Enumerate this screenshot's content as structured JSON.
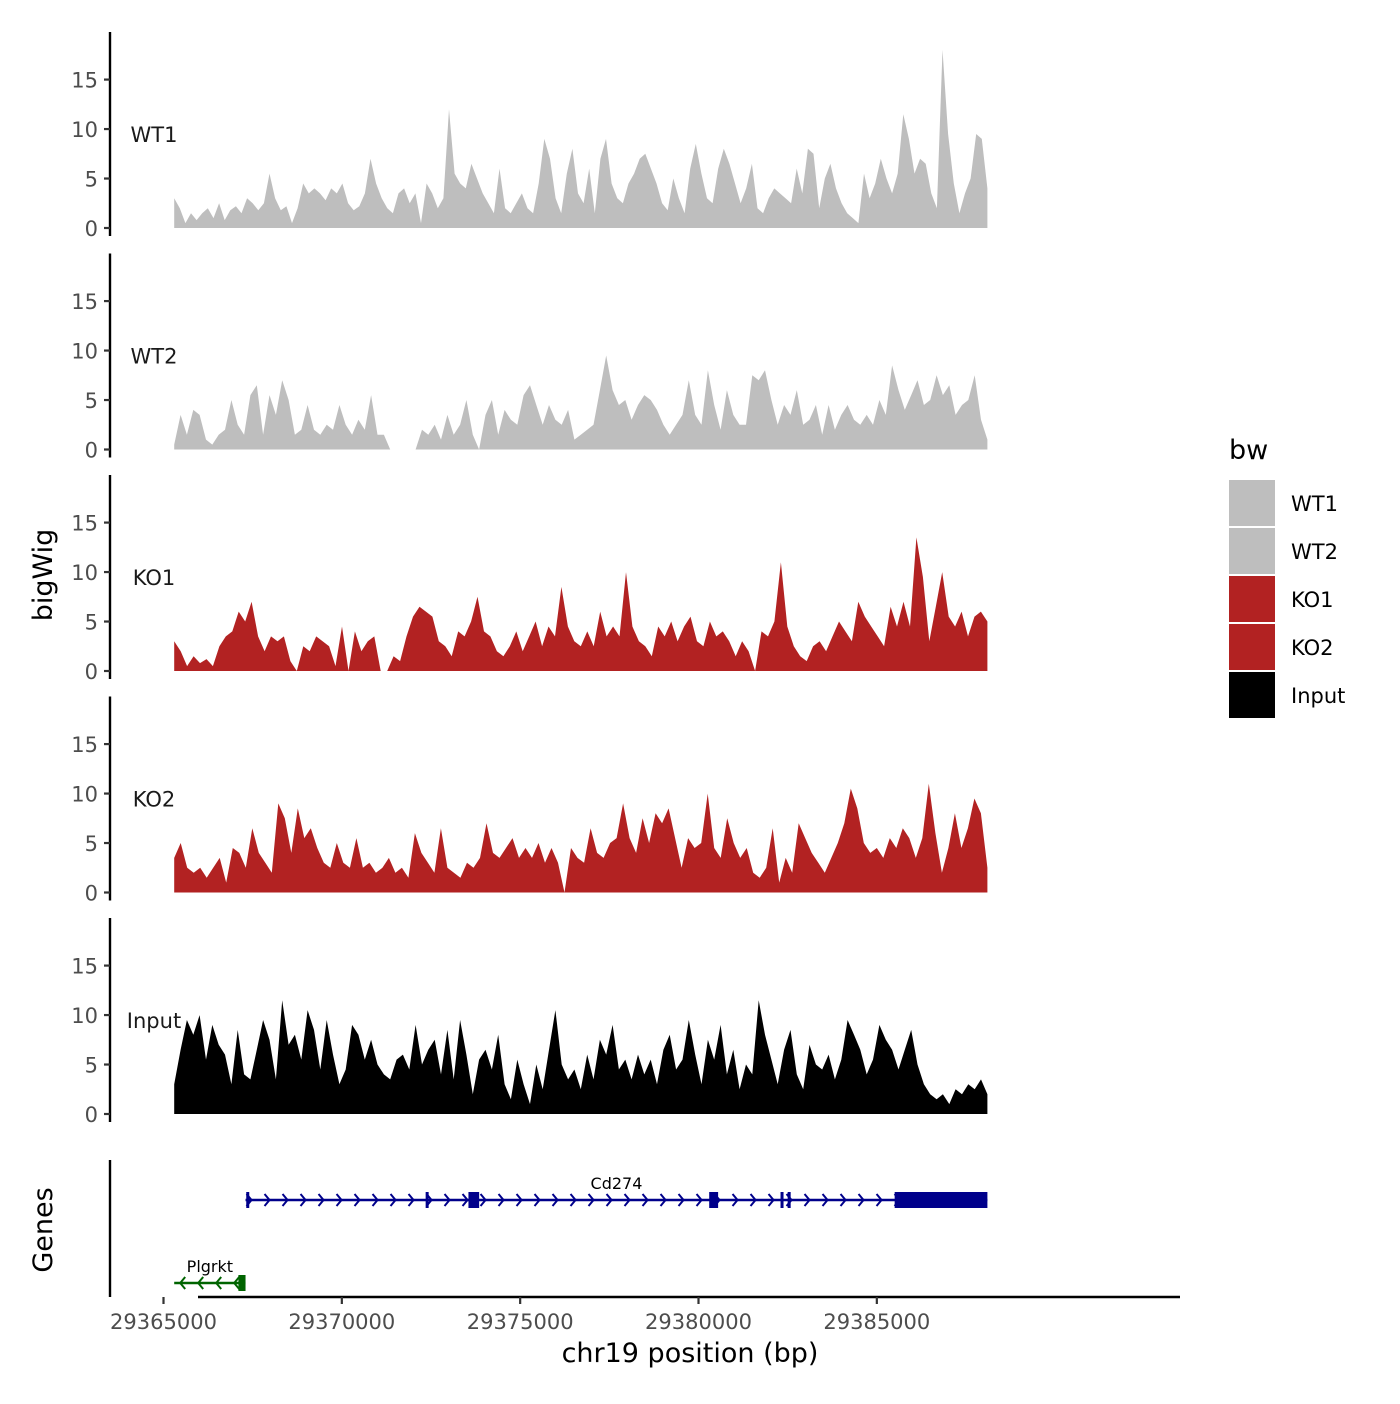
{
  "chart_data": {
    "type": "area",
    "title": "",
    "xlabel": "chr19 position (bp)",
    "ylabel": "bigWig",
    "genes_label": "Genes",
    "x_range": [
      29363500,
      29393500
    ],
    "region": [
      29365300,
      29388100
    ],
    "ylim": [
      0,
      19
    ],
    "y_ticks": [
      0,
      5,
      10,
      15
    ],
    "x_ticks": [
      29365000,
      29370000,
      29375000,
      29380000,
      29385000
    ],
    "x_tick_labels": [
      "29365000",
      "29370000",
      "29375000",
      "29380000",
      "29385000"
    ],
    "legend": {
      "title": "bw",
      "position": "right",
      "entries": [
        {
          "label": "WT1",
          "color": "#BEBEBE"
        },
        {
          "label": "WT2",
          "color": "#BEBEBE"
        },
        {
          "label": "KO1",
          "color": "#B22222"
        },
        {
          "label": "KO2",
          "color": "#B22222"
        },
        {
          "label": "Input",
          "color": "#000000"
        }
      ]
    },
    "series": [
      {
        "name": "WT1",
        "color": "#BEBEBE",
        "values": [
          3.0,
          2.0,
          0.5,
          1.5,
          0.8,
          1.5,
          2.0,
          1.0,
          2.5,
          0.8,
          1.8,
          2.2,
          1.5,
          3.0,
          2.5,
          1.8,
          2.5,
          5.5,
          3.0,
          1.8,
          2.2,
          0.5,
          2.0,
          4.5,
          3.5,
          4.0,
          3.5,
          2.8,
          4.0,
          3.5,
          4.5,
          2.5,
          1.8,
          2.2,
          3.5,
          7.0,
          4.5,
          3.0,
          2.0,
          1.5,
          3.5,
          4.0,
          2.5,
          3.5,
          0.5,
          4.5,
          3.5,
          2.0,
          3.0,
          12.0,
          5.5,
          4.5,
          4.0,
          6.5,
          5.0,
          3.5,
          2.5,
          1.5,
          6.0,
          2.0,
          1.5,
          2.5,
          3.5,
          2.0,
          1.5,
          4.5,
          9.0,
          7.0,
          3.0,
          1.5,
          5.5,
          8.0,
          3.5,
          2.5,
          6.0,
          1.5,
          7.0,
          9.0,
          4.5,
          3.0,
          2.5,
          4.5,
          5.5,
          7.0,
          7.5,
          6.0,
          4.5,
          2.5,
          1.8,
          5.0,
          3.0,
          1.5,
          6.0,
          8.5,
          5.5,
          3.0,
          2.5,
          6.0,
          8.0,
          6.5,
          4.5,
          2.5,
          4.0,
          6.5,
          2.0,
          1.5,
          3.0,
          4.0,
          3.5,
          3.0,
          2.5,
          6.0,
          3.5,
          8.0,
          7.5,
          2.0,
          5.0,
          6.5,
          4.0,
          2.5,
          1.5,
          1.0,
          0.5,
          5.5,
          3.0,
          4.5,
          7.0,
          5.0,
          3.5,
          5.5,
          11.5,
          9.0,
          5.5,
          7.0,
          6.5,
          3.5,
          2.0,
          18.0,
          9.5,
          4.5,
          1.5,
          3.5,
          5.0,
          9.5,
          9.0,
          4.0
        ]
      },
      {
        "name": "WT2",
        "color": "#BEBEBE",
        "values": [
          0.5,
          3.5,
          1.5,
          4.0,
          3.5,
          1.0,
          0.5,
          1.5,
          2.0,
          5.0,
          2.5,
          1.5,
          5.5,
          6.5,
          1.5,
          5.5,
          3.5,
          7.0,
          5.0,
          1.5,
          2.0,
          4.5,
          2.0,
          1.5,
          2.5,
          2.0,
          4.5,
          2.5,
          1.5,
          3.0,
          2.0,
          5.5,
          1.5,
          1.5,
          0,
          0,
          0,
          0,
          0,
          2.0,
          1.5,
          2.5,
          1.0,
          3.5,
          1.5,
          2.5,
          5.0,
          1.5,
          0,
          3.5,
          5.0,
          1.5,
          4.0,
          3.0,
          2.5,
          5.5,
          6.5,
          4.5,
          2.5,
          4.5,
          3.0,
          2.5,
          4.0,
          1.0,
          1.5,
          2.0,
          2.5,
          6.0,
          9.5,
          6.0,
          4.5,
          5.0,
          3.0,
          4.5,
          5.5,
          5.0,
          4.0,
          2.5,
          1.5,
          2.5,
          3.5,
          7.0,
          3.5,
          2.5,
          8.0,
          4.5,
          2.0,
          6.0,
          3.5,
          2.5,
          2.5,
          7.5,
          7.0,
          8.0,
          5.0,
          2.5,
          4.5,
          3.5,
          6.0,
          2.5,
          3.0,
          4.5,
          1.5,
          4.5,
          2.0,
          3.5,
          4.5,
          3.0,
          2.5,
          3.5,
          2.5,
          5.0,
          3.5,
          8.5,
          6.0,
          4.0,
          5.5,
          7.0,
          4.5,
          5.0,
          7.5,
          5.5,
          6.5,
          3.5,
          4.5,
          5.0,
          7.5,
          3.0,
          1.0
        ]
      },
      {
        "name": "KO1",
        "color": "#B22222",
        "values": [
          3.0,
          2.0,
          0.5,
          1.5,
          0.8,
          1.2,
          0.5,
          2.5,
          3.5,
          4.0,
          6.0,
          5.0,
          7.0,
          3.5,
          2.0,
          3.5,
          3.0,
          3.5,
          1.0,
          0,
          2.5,
          2.0,
          3.5,
          3.0,
          2.5,
          0.5,
          4.5,
          0,
          4.0,
          2.0,
          3.0,
          3.5,
          0,
          0,
          1.5,
          1.0,
          3.5,
          5.5,
          6.5,
          6.0,
          5.5,
          3.0,
          2.5,
          1.5,
          4.0,
          3.5,
          5.0,
          7.5,
          4.0,
          3.5,
          2.0,
          1.5,
          2.5,
          4.0,
          2.0,
          3.5,
          5.0,
          2.5,
          4.5,
          3.5,
          8.5,
          4.5,
          3.0,
          2.5,
          4.0,
          2.5,
          6.0,
          3.5,
          4.5,
          3.5,
          10.0,
          4.5,
          3.0,
          2.5,
          1.5,
          4.5,
          3.5,
          5.0,
          3.0,
          4.5,
          5.5,
          3.0,
          2.5,
          5.0,
          3.5,
          4.0,
          3.0,
          1.5,
          3.0,
          2.0,
          0,
          4.0,
          3.5,
          5.0,
          11.0,
          4.5,
          2.5,
          1.5,
          1.0,
          2.5,
          3.0,
          2.0,
          3.5,
          5.0,
          4.0,
          3.0,
          7.0,
          5.5,
          4.5,
          3.5,
          2.5,
          6.5,
          4.5,
          7.0,
          4.5,
          13.5,
          9.5,
          3.0,
          6.5,
          10.0,
          5.5,
          4.5,
          6.0,
          3.5,
          5.5,
          6.0,
          5.0
        ]
      },
      {
        "name": "KO2",
        "color": "#B22222",
        "values": [
          3.5,
          5.0,
          2.5,
          2.0,
          2.5,
          1.5,
          2.5,
          3.5,
          1.0,
          4.5,
          4.0,
          2.5,
          6.5,
          4.0,
          3.0,
          2.0,
          9.0,
          7.5,
          4.0,
          8.5,
          5.5,
          6.5,
          4.5,
          3.0,
          2.5,
          5.0,
          3.0,
          2.5,
          5.5,
          2.5,
          3.0,
          2.0,
          2.5,
          3.5,
          2.0,
          2.5,
          1.5,
          6.0,
          4.0,
          3.0,
          2.0,
          6.5,
          2.5,
          2.0,
          1.5,
          3.0,
          2.5,
          3.5,
          7.0,
          4.0,
          3.5,
          4.5,
          5.5,
          3.5,
          4.5,
          3.5,
          5.0,
          3.0,
          4.5,
          3.0,
          0,
          4.5,
          3.5,
          3.0,
          6.5,
          4.0,
          3.5,
          5.0,
          5.5,
          9.0,
          5.5,
          4.0,
          7.5,
          5.0,
          8.0,
          7.0,
          8.5,
          5.5,
          2.5,
          5.5,
          4.5,
          5.0,
          10.0,
          4.5,
          3.5,
          7.5,
          5.0,
          3.5,
          4.5,
          2.0,
          1.5,
          2.5,
          6.5,
          1.0,
          3.5,
          2.0,
          7.0,
          5.5,
          4.0,
          3.0,
          2.0,
          3.5,
          5.0,
          7.0,
          10.5,
          8.5,
          5.0,
          4.0,
          4.5,
          3.5,
          5.5,
          4.5,
          6.5,
          5.5,
          3.5,
          5.5,
          11.0,
          6.0,
          2.0,
          4.5,
          8.0,
          4.5,
          6.5,
          9.5,
          8.0,
          2.5
        ]
      },
      {
        "name": "Input",
        "color": "#000000",
        "values": [
          3.0,
          6.5,
          9.5,
          8.0,
          10.0,
          5.5,
          9.0,
          7.0,
          6.0,
          3.0,
          8.5,
          4.0,
          3.5,
          6.5,
          9.5,
          7.5,
          3.5,
          11.5,
          7.0,
          8.0,
          5.5,
          10.5,
          8.5,
          4.5,
          9.5,
          6.0,
          3.0,
          4.5,
          9.0,
          8.0,
          5.5,
          7.5,
          5.0,
          4.0,
          3.5,
          5.5,
          6.0,
          4.5,
          9.0,
          5.0,
          6.5,
          7.5,
          4.0,
          8.5,
          3.5,
          9.5,
          6.0,
          2.0,
          5.5,
          6.5,
          4.5,
          8.0,
          3.0,
          1.5,
          5.5,
          3.0,
          1.0,
          5.0,
          2.5,
          6.5,
          10.5,
          5.0,
          3.5,
          4.5,
          2.5,
          6.0,
          3.5,
          7.5,
          6.0,
          9.0,
          4.5,
          5.5,
          3.5,
          6.0,
          4.0,
          5.5,
          3.0,
          6.5,
          8.0,
          4.5,
          5.5,
          9.5,
          6.0,
          3.0,
          7.5,
          5.5,
          9.0,
          4.0,
          6.5,
          2.5,
          5.0,
          4.0,
          11.5,
          8.0,
          5.5,
          3.0,
          6.5,
          8.5,
          4.0,
          2.5,
          7.0,
          5.0,
          4.5,
          6.0,
          3.5,
          5.5,
          9.5,
          8.0,
          6.5,
          4.0,
          5.5,
          9.0,
          7.5,
          6.5,
          4.5,
          6.5,
          8.5,
          5.0,
          3.0,
          2.0,
          1.5,
          2.0,
          1.0,
          2.5,
          2.0,
          3.0,
          2.5,
          3.5,
          2.0
        ]
      }
    ],
    "genes": [
      {
        "name": "Cd274",
        "color": "#00008B",
        "start": 29367300,
        "end": 29388100,
        "strand": "+",
        "row": 1,
        "exons": [
          [
            29367320,
            29367380
          ],
          [
            29372350,
            29372420
          ],
          [
            29373550,
            29373850
          ],
          [
            29380300,
            29380550
          ],
          [
            29382300,
            29382380
          ],
          [
            29382500,
            29382560
          ],
          [
            29385500,
            29388100
          ]
        ]
      },
      {
        "name": "Plgrkt",
        "color": "#006400",
        "start": 29365300,
        "end": 29367300,
        "strand": "-",
        "row": 2,
        "exons": [
          [
            29367100,
            29367300
          ]
        ]
      }
    ]
  }
}
